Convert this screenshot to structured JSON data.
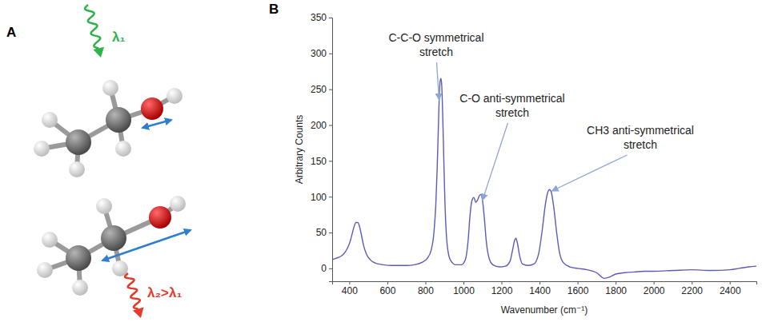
{
  "diagram": {
    "panel": "A",
    "wave_labels": [
      "λ₁",
      "λ₂>λ₁"
    ]
  },
  "chart_data": {
    "type": "line",
    "panel": "B",
    "x_label": "Wavenumber (cm⁻¹)",
    "y_label": "Arbitrary Counts",
    "x": [
      310,
      330,
      350,
      370,
      390,
      405,
      415,
      425,
      435,
      445,
      455,
      465,
      475,
      490,
      510,
      540,
      580,
      620,
      660,
      700,
      740,
      780,
      810,
      830,
      845,
      855,
      862,
      868,
      873,
      878,
      882,
      886,
      891,
      897,
      903,
      910,
      920,
      935,
      960,
      990,
      1010,
      1025,
      1035,
      1045,
      1055,
      1065,
      1075,
      1085,
      1092,
      1100,
      1110,
      1120,
      1135,
      1155,
      1190,
      1220,
      1245,
      1258,
      1268,
      1276,
      1284,
      1295,
      1310,
      1340,
      1370,
      1395,
      1415,
      1430,
      1442,
      1452,
      1462,
      1475,
      1490,
      1505,
      1525,
      1560,
      1600,
      1650,
      1700,
      1740,
      1770,
      1800,
      1850,
      1900,
      1950,
      2000,
      2100,
      2200,
      2300,
      2400,
      2450,
      2500,
      2540
    ],
    "values": [
      12,
      14,
      16,
      20,
      28,
      38,
      48,
      58,
      64,
      64,
      57,
      45,
      32,
      20,
      12,
      7,
      5,
      4,
      4,
      4,
      5,
      8,
      14,
      25,
      50,
      90,
      140,
      195,
      240,
      262,
      265,
      255,
      215,
      150,
      90,
      48,
      22,
      10,
      5,
      5,
      12,
      40,
      75,
      95,
      99,
      92,
      96,
      102,
      103,
      95,
      70,
      38,
      14,
      5,
      2,
      3,
      10,
      25,
      38,
      42,
      35,
      18,
      6,
      4,
      6,
      20,
      55,
      88,
      105,
      110,
      106,
      85,
      50,
      22,
      8,
      2,
      0,
      -2,
      -6,
      -14,
      -12,
      -8,
      -6,
      -5,
      -4,
      -4,
      -3,
      -2,
      -3,
      -2,
      0,
      2,
      3
    ],
    "color": "#5c5cb8",
    "xlim": [
      310,
      2540
    ],
    "ylim": [
      -18,
      350
    ],
    "xticks": [
      400,
      600,
      800,
      1000,
      1200,
      1400,
      1600,
      1800,
      2000,
      2200,
      2400
    ],
    "yticks": [
      0,
      50,
      100,
      150,
      200,
      250,
      300,
      350
    ],
    "grid": false,
    "annotations": [
      {
        "text": [
          "C-C-O symmetrical",
          "stretch"
        ],
        "x": 872,
        "y": 235
      },
      {
        "text": [
          "C-O anti-symmetrical",
          "stretch"
        ],
        "x": 1100,
        "y": 95
      },
      {
        "text": [
          "CH3 anti-symmetrical",
          "stretch"
        ],
        "x": 1465,
        "y": 108
      }
    ]
  }
}
